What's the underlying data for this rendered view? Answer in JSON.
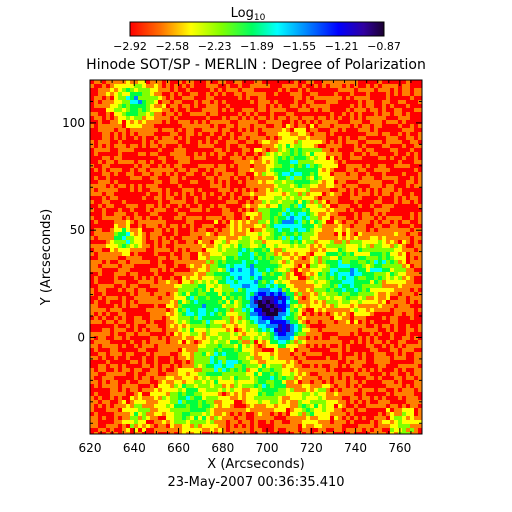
{
  "chart_data": {
    "type": "heatmap",
    "title": "Hinode SOT/SP - MERLIN : Degree of Polarization",
    "xlabel": "X (Arcseconds)",
    "ylabel": "Y (Arcseconds)",
    "xlim": [
      620,
      770
    ],
    "ylim": [
      -45,
      120
    ],
    "x_ticks": [
      620,
      640,
      660,
      680,
      700,
      720,
      740,
      760
    ],
    "y_ticks": [
      0,
      50,
      100
    ],
    "footer": "23-May-2007 00:36:35.410",
    "colorbar": {
      "label_base": "Log",
      "label_sub": "10",
      "ticks": [
        "−2.92",
        "−2.58",
        "−2.23",
        "−1.89",
        "−1.55",
        "−1.21",
        "−0.87"
      ],
      "range": [
        -2.92,
        -0.87
      ],
      "colormap": [
        "#ff0000",
        "#ff8000",
        "#ffff00",
        "#80ff00",
        "#00ff40",
        "#00ffff",
        "#0080ff",
        "#0000ff",
        "#3000a0",
        "#1a0030"
      ]
    },
    "map_description_regions": {
      "dominant_value": -2.9,
      "low_polarization_areas": "top-left and right-hand quiet regions (red/orange)",
      "high_polarization_areas": "network lanes around x 660-740, y -40 to 90 (green/cyan/blue), strongest near x 700, y 15 (dark purple)"
    },
    "colors": {
      "background": "#ffffff",
      "axes": "#000000"
    }
  }
}
